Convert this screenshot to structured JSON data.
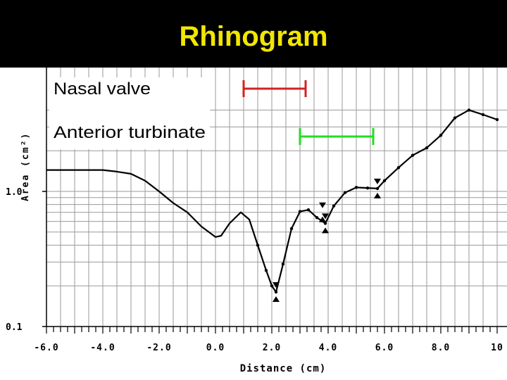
{
  "slide": {
    "title": "Rhinogram"
  },
  "chart_data": {
    "type": "line",
    "xlabel": "Distance (cm)",
    "ylabel": "Area (cm²)",
    "xlim": [
      -6.0,
      10.0
    ],
    "yscale": "log",
    "ylim": [
      0.1,
      4.0
    ],
    "x_ticks": [
      -6,
      -4,
      -2,
      0,
      2,
      4,
      6,
      8,
      10
    ],
    "x_tick_labels": [
      "-6.0",
      "-4.0",
      "-2.0",
      "0.0",
      "2.0",
      "4.0",
      "6.0",
      "8.0",
      "10"
    ],
    "y_ticks": [
      0.1,
      1.0
    ],
    "y_tick_labels": [
      "0.1",
      "1.0"
    ],
    "grid": true,
    "series": [
      {
        "color": "#000000",
        "x": [
          -6.0,
          -4.0,
          -3.5,
          -3.0,
          -2.5,
          -2.0,
          -1.5,
          -1.0,
          -0.5,
          0.0,
          0.2,
          0.5,
          0.9,
          1.2,
          1.5,
          1.8,
          2.0,
          2.15,
          2.4,
          2.7,
          3.0,
          3.3,
          3.6,
          3.9,
          4.2,
          4.6,
          5.0,
          5.4,
          5.75,
          6.0,
          6.5,
          7.0,
          7.5,
          8.0,
          8.5,
          9.0,
          9.5,
          10.0
        ],
        "y": [
          1.44,
          1.44,
          1.4,
          1.35,
          1.2,
          1.0,
          0.82,
          0.7,
          0.55,
          0.46,
          0.47,
          0.58,
          0.7,
          0.62,
          0.4,
          0.26,
          0.2,
          0.18,
          0.29,
          0.53,
          0.71,
          0.73,
          0.64,
          0.58,
          0.78,
          0.98,
          1.07,
          1.06,
          1.05,
          1.2,
          1.5,
          1.85,
          2.1,
          2.6,
          3.5,
          4.0,
          3.7,
          3.4
        ]
      }
    ],
    "annotations": [
      {
        "label": "Nasal valve",
        "color": "#d42020",
        "x_start": 1.0,
        "x_end": 3.2
      },
      {
        "label": "Anterior turbinate",
        "color": "#22dd22",
        "x_start": 3.0,
        "x_end": 5.6
      }
    ],
    "markers": [
      {
        "x": 2.15,
        "y": 0.18
      },
      {
        "x": 3.8,
        "y": 0.7
      },
      {
        "x": 3.9,
        "y": 0.58
      },
      {
        "x": 5.75,
        "y": 1.05
      }
    ]
  }
}
